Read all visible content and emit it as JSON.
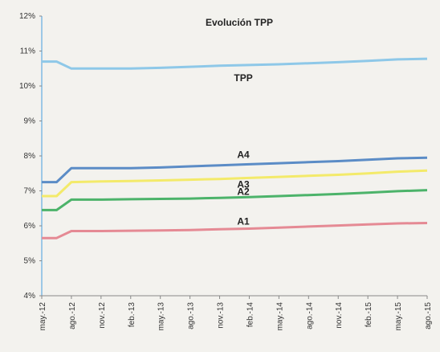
{
  "chart_data": {
    "type": "line",
    "title": "Evolución TPP",
    "xlabel": "",
    "ylabel": "",
    "x_ticks": [
      "may.-12",
      "ago.-12",
      "nov.-12",
      "feb.-13",
      "may.-13",
      "ago.-13",
      "nov.-13",
      "feb.-14",
      "may.-14",
      "ago.-14",
      "nov.-14",
      "feb.-15",
      "may.-15",
      "ago.-15"
    ],
    "y_ticks": [
      "4%",
      "5%",
      "6%",
      "7%",
      "8%",
      "9%",
      "10%",
      "11%",
      "12%"
    ],
    "ylim": [
      4,
      12
    ],
    "grid": false,
    "legend": "none",
    "series": [
      {
        "name": "TPP",
        "color": "#8ec8e8",
        "points": [
          [
            0,
            10.7
          ],
          [
            0.5,
            10.7
          ],
          [
            1,
            10.5
          ],
          [
            2,
            10.5
          ],
          [
            3,
            10.5
          ],
          [
            4,
            10.52
          ],
          [
            5,
            10.55
          ],
          [
            6,
            10.58
          ],
          [
            7,
            10.6
          ],
          [
            8,
            10.62
          ],
          [
            9,
            10.65
          ],
          [
            10,
            10.68
          ],
          [
            11,
            10.72
          ],
          [
            12,
            10.76
          ],
          [
            13,
            10.78
          ]
        ]
      },
      {
        "name": "A4",
        "color": "#5b8cc6",
        "points": [
          [
            0,
            7.25
          ],
          [
            0.5,
            7.25
          ],
          [
            1,
            7.65
          ],
          [
            2,
            7.65
          ],
          [
            3,
            7.65
          ],
          [
            4,
            7.67
          ],
          [
            5,
            7.7
          ],
          [
            6,
            7.73
          ],
          [
            7,
            7.76
          ],
          [
            8,
            7.79
          ],
          [
            9,
            7.82
          ],
          [
            10,
            7.85
          ],
          [
            11,
            7.89
          ],
          [
            12,
            7.93
          ],
          [
            13,
            7.95
          ]
        ]
      },
      {
        "name": "A3",
        "color": "#f3ea6a",
        "points": [
          [
            0,
            6.85
          ],
          [
            0.5,
            6.85
          ],
          [
            1,
            7.25
          ],
          [
            2,
            7.27
          ],
          [
            3,
            7.28
          ],
          [
            4,
            7.3
          ],
          [
            5,
            7.32
          ],
          [
            6,
            7.34
          ],
          [
            7,
            7.37
          ],
          [
            8,
            7.4
          ],
          [
            9,
            7.43
          ],
          [
            10,
            7.46
          ],
          [
            11,
            7.5
          ],
          [
            12,
            7.55
          ],
          [
            13,
            7.58
          ]
        ]
      },
      {
        "name": "A2",
        "color": "#4cb36a",
        "points": [
          [
            0,
            6.45
          ],
          [
            0.5,
            6.45
          ],
          [
            1,
            6.75
          ],
          [
            2,
            6.75
          ],
          [
            3,
            6.76
          ],
          [
            4,
            6.77
          ],
          [
            5,
            6.78
          ],
          [
            6,
            6.8
          ],
          [
            7,
            6.82
          ],
          [
            8,
            6.85
          ],
          [
            9,
            6.88
          ],
          [
            10,
            6.91
          ],
          [
            11,
            6.95
          ],
          [
            12,
            6.99
          ],
          [
            13,
            7.02
          ]
        ]
      },
      {
        "name": "A1",
        "color": "#e58a94",
        "points": [
          [
            0,
            5.65
          ],
          [
            0.5,
            5.65
          ],
          [
            1,
            5.85
          ],
          [
            2,
            5.85
          ],
          [
            3,
            5.86
          ],
          [
            4,
            5.87
          ],
          [
            5,
            5.88
          ],
          [
            6,
            5.9
          ],
          [
            7,
            5.92
          ],
          [
            8,
            5.95
          ],
          [
            9,
            5.98
          ],
          [
            10,
            6.01
          ],
          [
            11,
            6.04
          ],
          [
            12,
            6.07
          ],
          [
            13,
            6.08
          ]
        ]
      }
    ],
    "labels": [
      {
        "text": "TPP",
        "series": "TPP"
      },
      {
        "text": "A4",
        "series": "A4"
      },
      {
        "text": "A3",
        "series": "A3"
      },
      {
        "text": "A2",
        "series": "A2"
      },
      {
        "text": "A1",
        "series": "A1"
      }
    ]
  }
}
